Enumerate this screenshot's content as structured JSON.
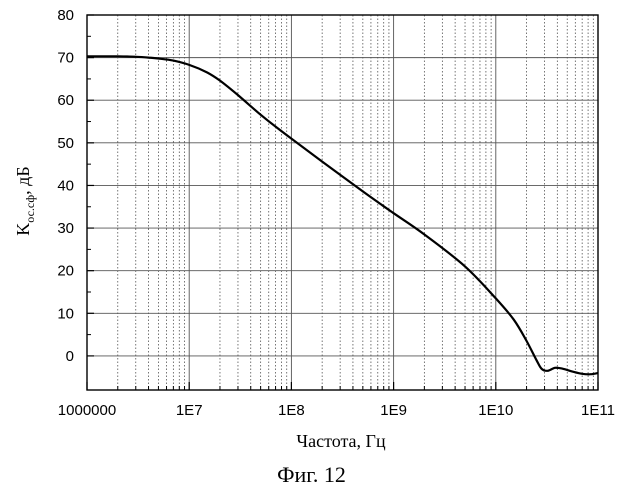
{
  "caption": "Фиг. 12",
  "chart_data": {
    "type": "line",
    "xlabel": "Частота, Гц",
    "ylabel_main": "K",
    "ylabel_sub": "ос.сф",
    "ylabel_unit": ", дБ",
    "x_scale": "log",
    "xlim": [
      1000000,
      100000000000
    ],
    "ylim": [
      -8,
      80
    ],
    "x_ticks": [
      {
        "value": 1000000,
        "label": "1000000"
      },
      {
        "value": 10000000,
        "label": "1E7"
      },
      {
        "value": 100000000,
        "label": "1E8"
      },
      {
        "value": 1000000000,
        "label": "1E9"
      },
      {
        "value": 10000000000,
        "label": "1E10"
      },
      {
        "value": 100000000000,
        "label": "1E11"
      }
    ],
    "y_ticks": [
      0,
      10,
      20,
      30,
      40,
      50,
      60,
      70,
      80
    ],
    "grid": true,
    "series": [
      {
        "x": [
          1000000,
          2000000,
          3000000,
          4000000,
          5000000,
          7000000,
          10000000,
          15000000,
          20000000,
          30000000,
          50000000,
          70000000,
          100000000,
          200000000,
          500000000,
          1000000000,
          2000000000,
          5000000000,
          10000000000,
          15000000000,
          20000000000,
          25000000000,
          28000000000,
          32000000000,
          38000000000,
          45000000000,
          55000000000,
          70000000000,
          85000000000,
          100000000000
        ],
        "y": [
          70.3,
          70.3,
          70.2,
          70.0,
          69.8,
          69.3,
          68.3,
          66.5,
          64.6,
          61.2,
          56.6,
          53.8,
          51.0,
          45.6,
          38.6,
          33.5,
          28.5,
          21.0,
          13.5,
          8.5,
          3.5,
          -1.0,
          -3.0,
          -3.5,
          -2.8,
          -3.0,
          -3.6,
          -4.2,
          -4.3,
          -4.0
        ]
      }
    ]
  },
  "colors": {
    "line": "#000000",
    "grid": "#555555",
    "axis": "#000000"
  }
}
